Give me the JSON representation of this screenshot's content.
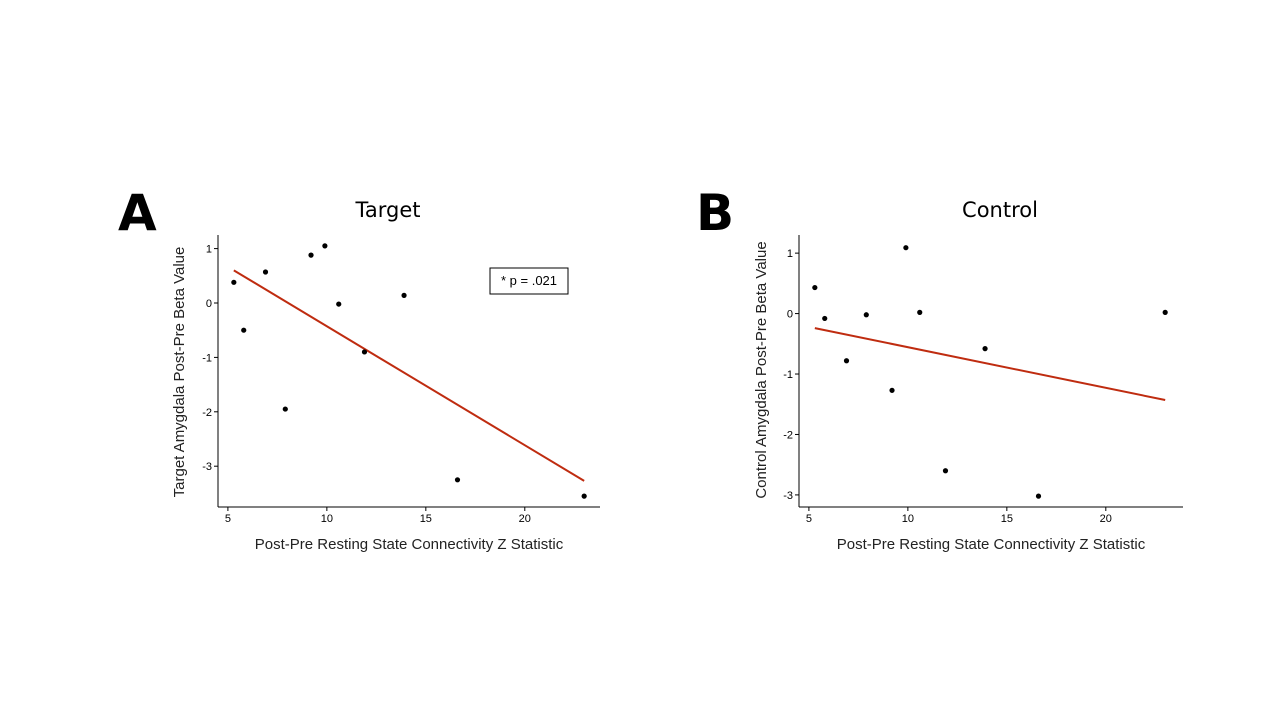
{
  "chart_data": [
    {
      "panel_label": "A",
      "type": "scatter",
      "title": "Target",
      "xlabel": "Post-Pre Resting State Connectivity Z Statistic",
      "ylabel": "Target Amygdala Post-Pre Beta Value",
      "xlim": [
        4.5,
        23.8
      ],
      "ylim": [
        -3.75,
        1.25
      ],
      "xticks": [
        5,
        10,
        15,
        20
      ],
      "yticks": [
        1,
        0,
        -1,
        -2,
        -3
      ],
      "grid": false,
      "points": [
        {
          "x": 5.3,
          "y": 0.38
        },
        {
          "x": 5.8,
          "y": -0.5
        },
        {
          "x": 6.9,
          "y": 0.57
        },
        {
          "x": 7.9,
          "y": -1.95
        },
        {
          "x": 9.2,
          "y": 0.88
        },
        {
          "x": 9.9,
          "y": 1.05
        },
        {
          "x": 10.6,
          "y": -0.02
        },
        {
          "x": 11.9,
          "y": -0.9
        },
        {
          "x": 13.9,
          "y": 0.14
        },
        {
          "x": 16.6,
          "y": -3.25
        },
        {
          "x": 23.0,
          "y": -3.55
        }
      ],
      "fit_line": {
        "x": [
          5.3,
          23.0
        ],
        "y": [
          0.6,
          -3.27
        ],
        "color": "#bf2c10"
      },
      "annotation": "* p = .021",
      "point_color": "#000000"
    },
    {
      "panel_label": "B",
      "type": "scatter",
      "title": "Control",
      "xlabel": "Post-Pre Resting State Connectivity Z Statistic",
      "ylabel": "Control Amygdala Post-Pre Beta Value",
      "xlim": [
        4.5,
        23.9
      ],
      "ylim": [
        -3.2,
        1.3
      ],
      "xticks": [
        5,
        10,
        15,
        20
      ],
      "yticks": [
        1,
        0,
        -1,
        -2,
        -3
      ],
      "grid": false,
      "points": [
        {
          "x": 5.3,
          "y": 0.43
        },
        {
          "x": 5.8,
          "y": -0.08
        },
        {
          "x": 6.9,
          "y": -0.78
        },
        {
          "x": 7.9,
          "y": -0.02
        },
        {
          "x": 9.2,
          "y": -1.27
        },
        {
          "x": 9.9,
          "y": 1.09
        },
        {
          "x": 10.6,
          "y": 0.02
        },
        {
          "x": 11.9,
          "y": -2.6
        },
        {
          "x": 13.9,
          "y": -0.58
        },
        {
          "x": 16.6,
          "y": -3.02
        },
        {
          "x": 23.0,
          "y": 0.02
        }
      ],
      "fit_line": {
        "x": [
          5.3,
          23.0
        ],
        "y": [
          -0.24,
          -1.43
        ],
        "color": "#bf2c10"
      },
      "point_color": "#000000"
    }
  ]
}
